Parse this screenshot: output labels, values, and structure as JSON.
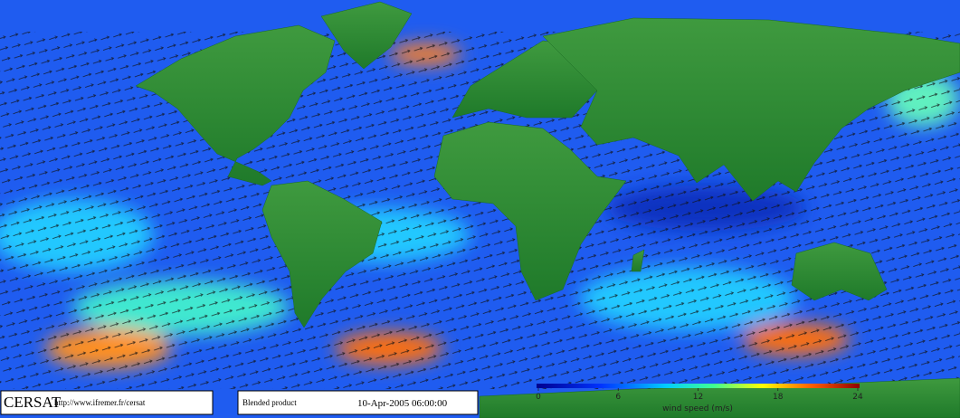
{
  "footer": {
    "logo": "CERSAT",
    "url": "http://www.ifremer.fr/cersat",
    "product": "Blended product",
    "date": "10-Apr-2005 06:00:00"
  },
  "colorbar": {
    "label": "wind speed (m/s)",
    "lim": [
      0,
      24
    ],
    "ticks": [
      0,
      6,
      12,
      18,
      24
    ]
  }
}
